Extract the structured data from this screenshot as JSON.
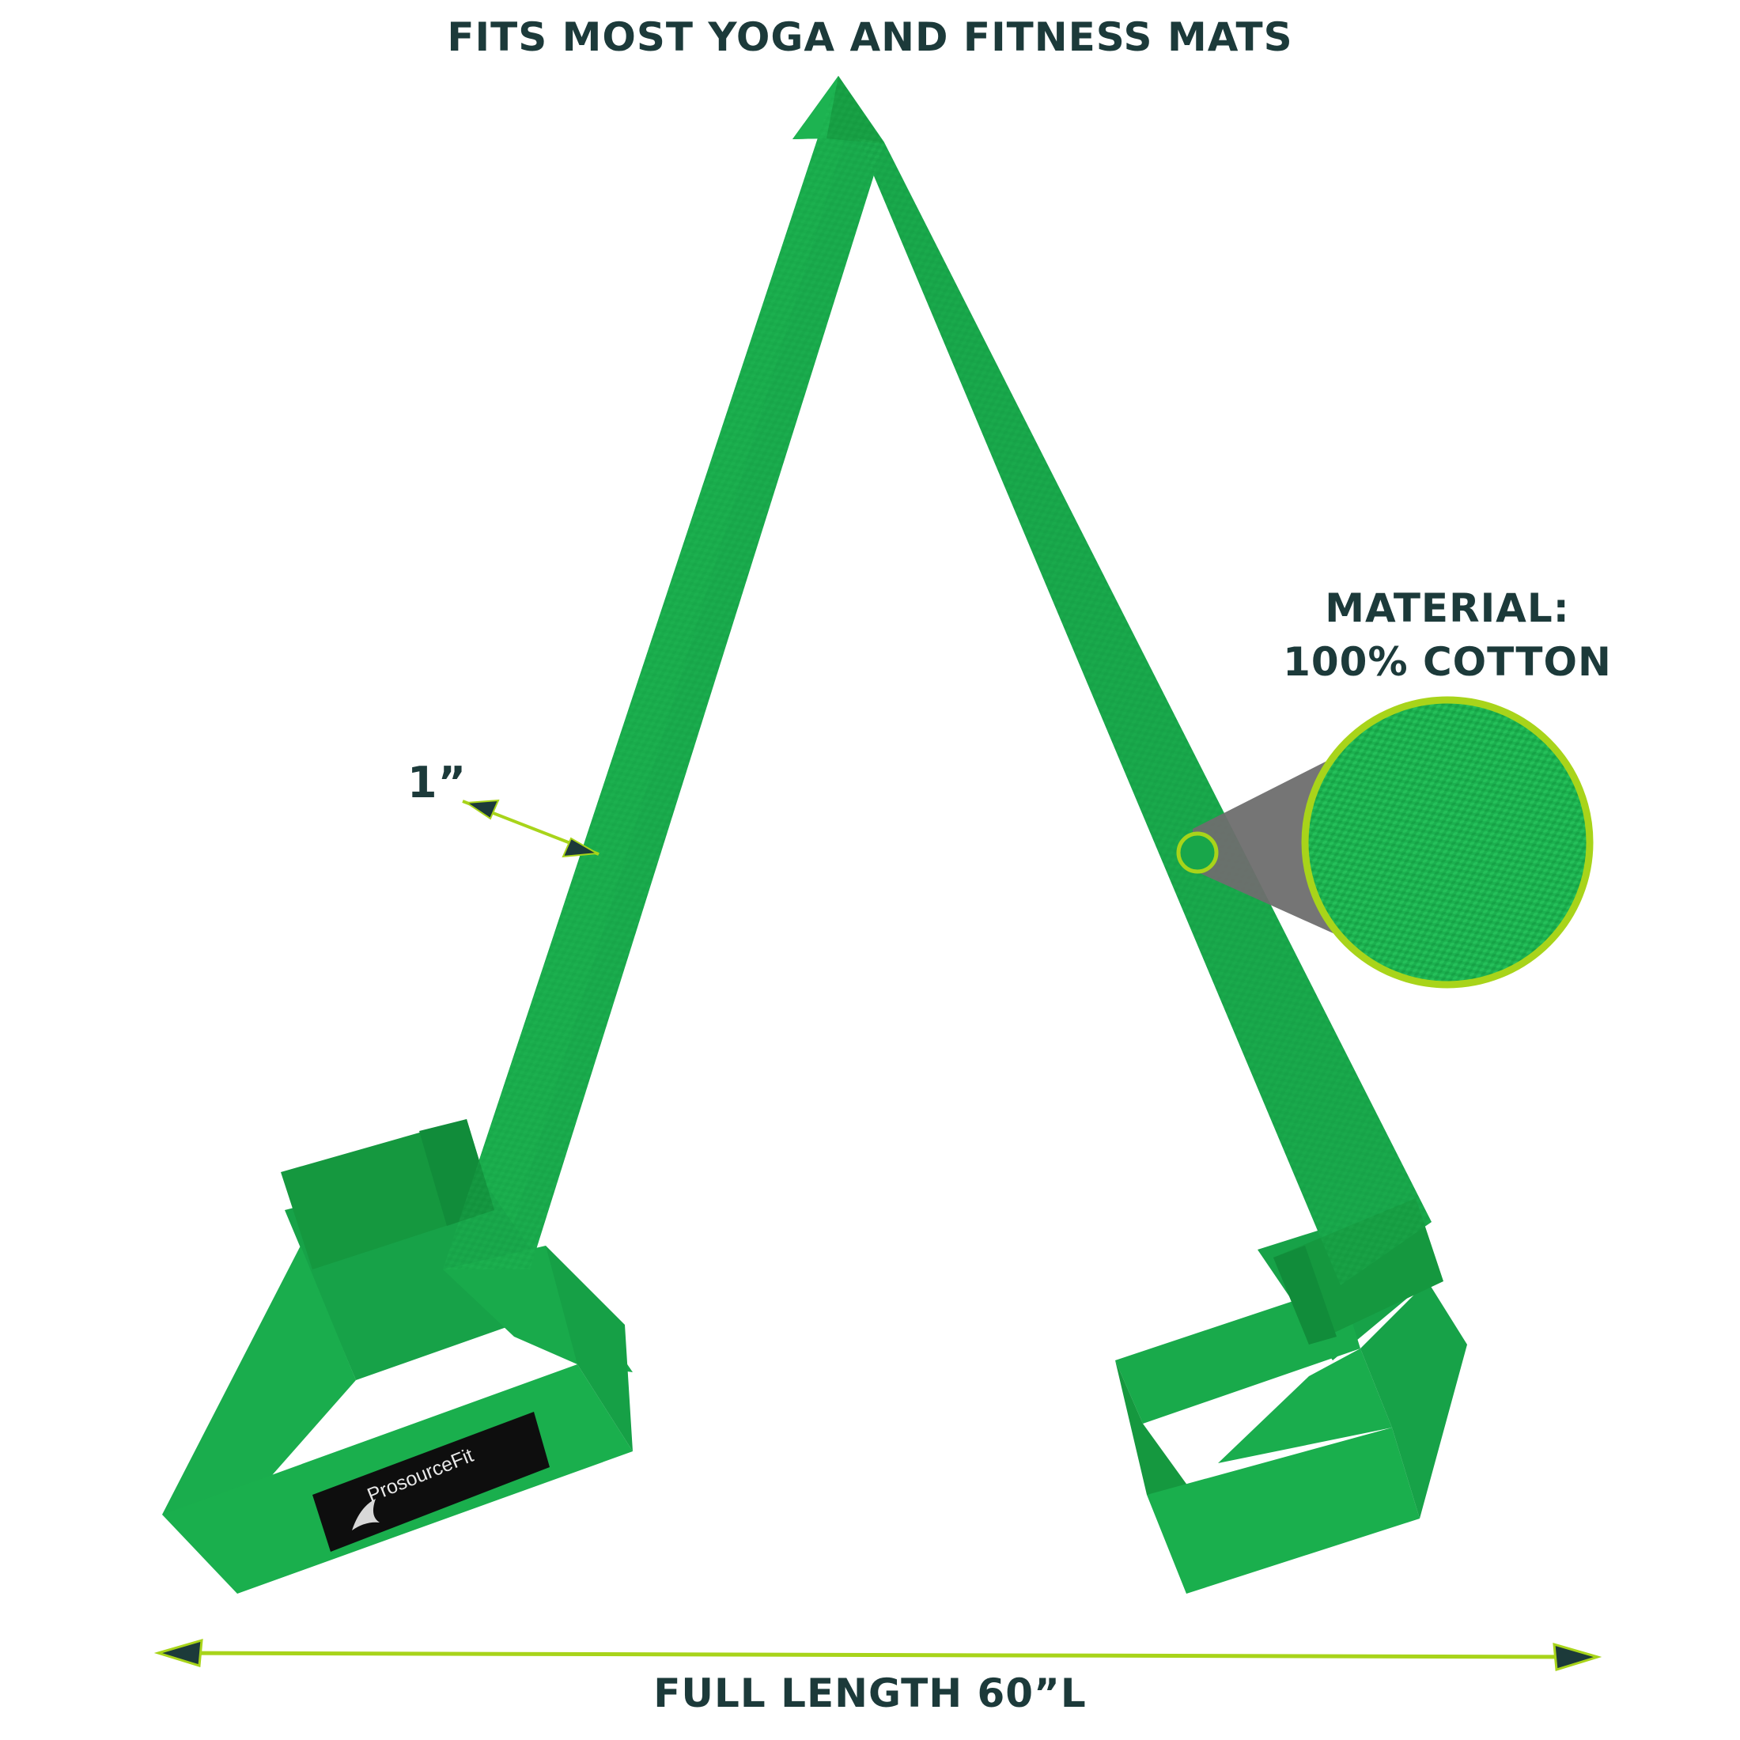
{
  "headline": "FITS MOST YOGA AND FITNESS MATS",
  "material": {
    "line1": "MATERIAL:",
    "line2": "100% COTTON"
  },
  "width_label": "1”",
  "length_label": "FULL LENGTH 60”L",
  "brand": "ProsourceFit",
  "colors": {
    "strap": "#18a64a",
    "strap_dark": "#118c3a",
    "accent": "#a8d41a",
    "text": "#1c3a3a",
    "callout_gray": "#6e6e6e"
  },
  "icons": {
    "logo": "prosourcefit-logo-icon",
    "arrow": "double-arrow-icon",
    "zoom": "fabric-zoom-icon"
  }
}
